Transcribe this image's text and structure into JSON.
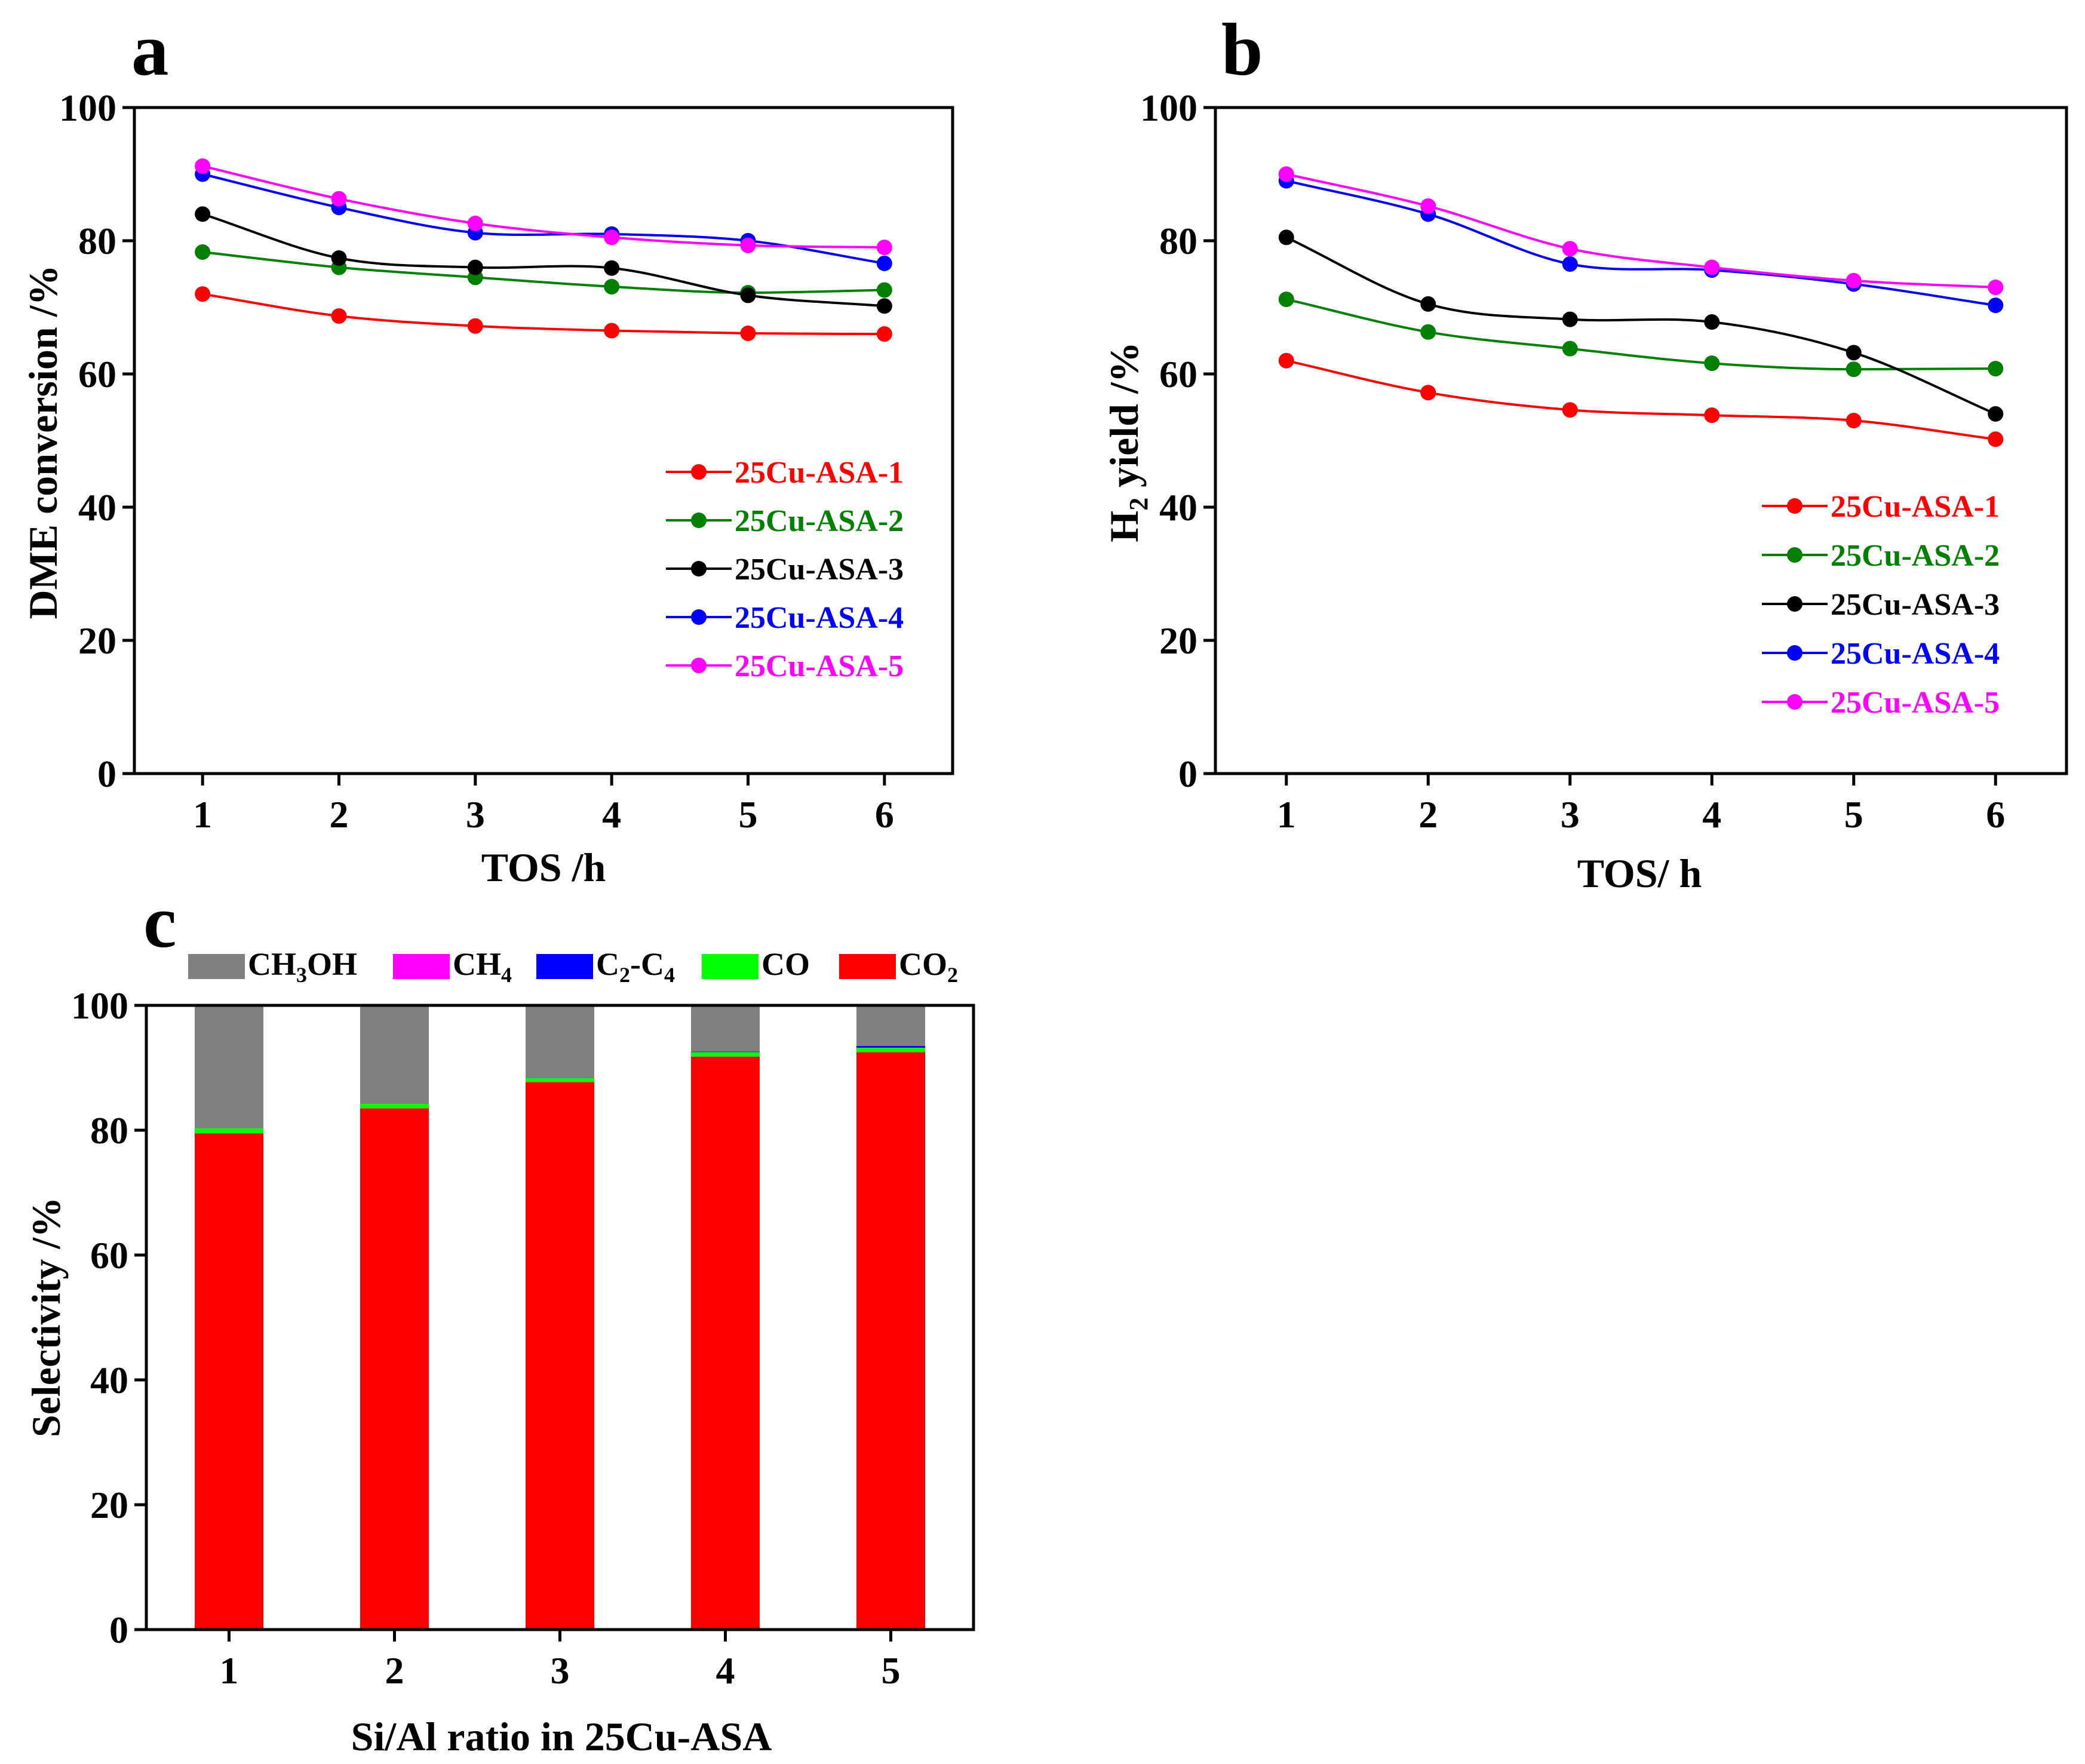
{
  "chart_data": [
    {
      "panel": "a",
      "type": "line",
      "xlabel": "TOS /h",
      "ylabel": "DME conversion /%",
      "x": [
        1,
        2,
        3,
        4,
        5,
        6
      ],
      "xlim": [
        0.5,
        6.5
      ],
      "ylim": [
        0,
        100
      ],
      "yticks": [
        0,
        20,
        40,
        60,
        80,
        100
      ],
      "legend_position": "lower-right",
      "series": [
        {
          "name": "25Cu-ASA-1",
          "color": "#ff0000",
          "values": [
            72,
            68.7,
            67.2,
            66.5,
            66.1,
            66
          ]
        },
        {
          "name": "25Cu-ASA-2",
          "color": "#008000",
          "values": [
            78.3,
            76,
            74.5,
            73.1,
            72.2,
            72.6
          ]
        },
        {
          "name": "25Cu-ASA-3",
          "color": "#000000",
          "values": [
            84,
            77.4,
            76,
            75.9,
            71.8,
            70.2
          ]
        },
        {
          "name": "25Cu-ASA-4",
          "color": "#0000ff",
          "values": [
            90,
            85,
            81.2,
            81,
            80,
            76.6
          ]
        },
        {
          "name": "25Cu-ASA-5",
          "color": "#ff00ff",
          "values": [
            91.2,
            86.3,
            82.6,
            80.5,
            79.3,
            79
          ]
        }
      ]
    },
    {
      "panel": "b",
      "type": "line",
      "xlabel": "TOS/ h",
      "ylabel": "H2 yield /%",
      "ylabel_main": "H",
      "ylabel_sub": "2",
      "ylabel_rest": " yield /%",
      "x": [
        1,
        2,
        3,
        4,
        5,
        6
      ],
      "xlim": [
        0.5,
        6.5
      ],
      "ylim": [
        0,
        100
      ],
      "yticks": [
        0,
        20,
        40,
        60,
        80,
        100
      ],
      "legend_position": "lower-right",
      "series": [
        {
          "name": "25Cu-ASA-1",
          "color": "#ff0000",
          "values": [
            62,
            57.2,
            54.6,
            53.8,
            53,
            50.2
          ]
        },
        {
          "name": "25Cu-ASA-2",
          "color": "#008000",
          "values": [
            71.2,
            66.3,
            63.8,
            61.6,
            60.7,
            60.8
          ]
        },
        {
          "name": "25Cu-ASA-3",
          "color": "#000000",
          "values": [
            80.5,
            70.5,
            68.2,
            67.8,
            63.2,
            54
          ]
        },
        {
          "name": "25Cu-ASA-4",
          "color": "#0000ff",
          "values": [
            89,
            84,
            76.5,
            75.6,
            73.5,
            70.3
          ]
        },
        {
          "name": "25Cu-ASA-5",
          "color": "#ff00ff",
          "values": [
            90,
            85.2,
            78.8,
            76,
            74,
            73
          ]
        }
      ]
    },
    {
      "panel": "c",
      "type": "bar",
      "stacked": true,
      "xlabel": "Si/Al ratio in 25Cu-ASA",
      "ylabel": "Selectivity /%",
      "categories": [
        "1",
        "2",
        "3",
        "4",
        "5"
      ],
      "ylim": [
        0,
        100
      ],
      "yticks": [
        0,
        20,
        40,
        60,
        80,
        100
      ],
      "legend_position": "top",
      "series": [
        {
          "name": "CO2",
          "color": "#ff0000",
          "values": [
            79.5,
            83.5,
            87.7,
            91.8,
            92.5
          ]
        },
        {
          "name": "CO",
          "color": "#00ff00",
          "values": [
            0.8,
            0.7,
            0.6,
            0.7,
            0.7
          ]
        },
        {
          "name": "C2-C4",
          "color": "#0000ff",
          "values": [
            0,
            0,
            0,
            0.1,
            0.3
          ]
        },
        {
          "name": "CH4",
          "color": "#ff00ff",
          "values": [
            0,
            0,
            0,
            0,
            0
          ]
        },
        {
          "name": "CH3OH",
          "color": "#808080",
          "values": [
            19.7,
            15.8,
            11.7,
            7.4,
            6.5
          ]
        }
      ]
    }
  ],
  "panel_labels": {
    "a": "a",
    "b": "b",
    "c": "c"
  },
  "legend_c": [
    {
      "key": "ch3oh",
      "color": "#808080",
      "parts": [
        [
          "CH",
          false
        ],
        [
          "3",
          true
        ],
        [
          "OH",
          false
        ]
      ]
    },
    {
      "key": "ch4",
      "color": "#ff00ff",
      "parts": [
        [
          "CH",
          false
        ],
        [
          "4",
          true
        ]
      ]
    },
    {
      "key": "c2c4",
      "color": "#0000ff",
      "parts": [
        [
          "C",
          false
        ],
        [
          "2",
          true
        ],
        [
          "-C",
          false
        ],
        [
          "4",
          true
        ]
      ]
    },
    {
      "key": "co",
      "color": "#00ff00",
      "parts": [
        [
          "CO",
          false
        ]
      ]
    },
    {
      "key": "co2",
      "color": "#ff0000",
      "parts": [
        [
          "CO",
          false
        ],
        [
          "2",
          true
        ]
      ]
    }
  ]
}
